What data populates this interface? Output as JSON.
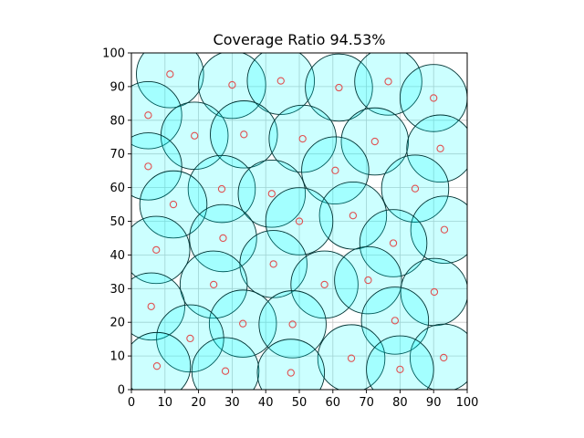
{
  "chart_data": {
    "type": "scatter",
    "title": "Coverage Ratio 94.53%",
    "xlabel": "",
    "ylabel": "",
    "xlim": [
      0,
      100
    ],
    "ylim": [
      0,
      100
    ],
    "xticks": [
      "0",
      "10",
      "20",
      "30",
      "40",
      "50",
      "60",
      "70",
      "80",
      "90",
      "100"
    ],
    "yticks": [
      "0",
      "10",
      "20",
      "30",
      "40",
      "50",
      "60",
      "70",
      "80",
      "90",
      "100"
    ],
    "grid": true,
    "coverage_radius": 10,
    "colors": {
      "coverage_fill": "#00ffff",
      "coverage_edge": "#003333",
      "sensor_marker": "#e05050",
      "grid": "#c8c8c8"
    },
    "points": [
      {
        "x": 11.5,
        "y": 93.7
      },
      {
        "x": 30.0,
        "y": 90.5
      },
      {
        "x": 44.5,
        "y": 91.7
      },
      {
        "x": 61.8,
        "y": 89.7
      },
      {
        "x": 76.5,
        "y": 91.5
      },
      {
        "x": 90.0,
        "y": 86.6
      },
      {
        "x": 5.0,
        "y": 81.5
      },
      {
        "x": 18.8,
        "y": 75.4
      },
      {
        "x": 33.5,
        "y": 75.8
      },
      {
        "x": 51.0,
        "y": 74.5
      },
      {
        "x": 72.5,
        "y": 73.7
      },
      {
        "x": 92.0,
        "y": 71.6
      },
      {
        "x": 5.0,
        "y": 66.3
      },
      {
        "x": 60.7,
        "y": 65.1
      },
      {
        "x": 26.9,
        "y": 59.6
      },
      {
        "x": 41.8,
        "y": 58.2
      },
      {
        "x": 84.5,
        "y": 59.7
      },
      {
        "x": 12.5,
        "y": 55.0
      },
      {
        "x": 66.0,
        "y": 51.7
      },
      {
        "x": 50.0,
        "y": 50.0
      },
      {
        "x": 93.2,
        "y": 47.5
      },
      {
        "x": 27.3,
        "y": 45.0
      },
      {
        "x": 7.4,
        "y": 41.5
      },
      {
        "x": 78.0,
        "y": 43.5
      },
      {
        "x": 42.3,
        "y": 37.3
      },
      {
        "x": 24.5,
        "y": 31.2
      },
      {
        "x": 57.5,
        "y": 31.2
      },
      {
        "x": 70.5,
        "y": 32.5
      },
      {
        "x": 90.2,
        "y": 29.0
      },
      {
        "x": 5.9,
        "y": 24.7
      },
      {
        "x": 33.2,
        "y": 19.6
      },
      {
        "x": 48.0,
        "y": 19.4
      },
      {
        "x": 78.5,
        "y": 20.5
      },
      {
        "x": 17.5,
        "y": 15.2
      },
      {
        "x": 65.5,
        "y": 9.3
      },
      {
        "x": 93.0,
        "y": 9.5
      },
      {
        "x": 7.6,
        "y": 7.0
      },
      {
        "x": 28.0,
        "y": 5.5
      },
      {
        "x": 47.5,
        "y": 5.0
      },
      {
        "x": 80.0,
        "y": 6.0
      }
    ]
  }
}
